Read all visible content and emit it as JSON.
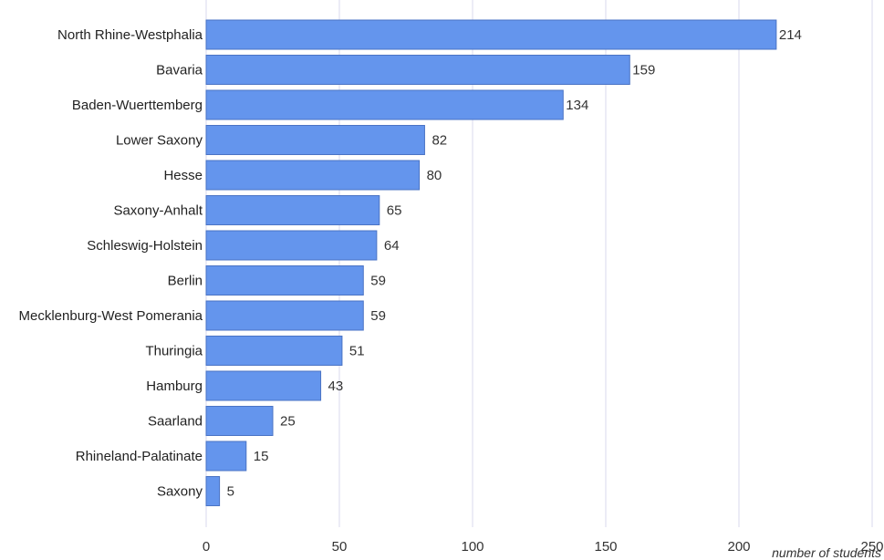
{
  "chart_data": {
    "type": "bar",
    "orientation": "horizontal",
    "categories": [
      "North Rhine-Westphalia",
      "Bavaria",
      "Baden-Wuerttemberg",
      "Lower Saxony",
      "Hesse",
      "Saxony-Anhalt",
      "Schleswig-Holstein",
      "Berlin",
      "Mecklenburg-West Pomerania",
      "Thuringia",
      "Hamburg",
      "Saarland",
      "Rhineland-Palatinate",
      "Saxony"
    ],
    "values": [
      214,
      159,
      134,
      82,
      80,
      65,
      64,
      59,
      59,
      51,
      43,
      25,
      15,
      5
    ],
    "data_labels": [
      "214",
      "159",
      "134",
      "82",
      "80",
      "65",
      "64",
      "59",
      "59",
      "51",
      "43",
      "25",
      "15",
      "5"
    ],
    "title": "",
    "xlabel": "number of students",
    "ylabel": "",
    "xlim": [
      0,
      250
    ],
    "x_ticks": [
      0,
      50,
      100,
      150,
      200,
      250
    ],
    "x_tick_labels": [
      "0",
      "50",
      "100",
      "150",
      "200",
      "250"
    ],
    "grid": "vertical",
    "legend": "none",
    "colors": {
      "bar": "#6495ED",
      "bar_stroke": "#4a73c4",
      "grid": "#d9d9ee"
    }
  }
}
